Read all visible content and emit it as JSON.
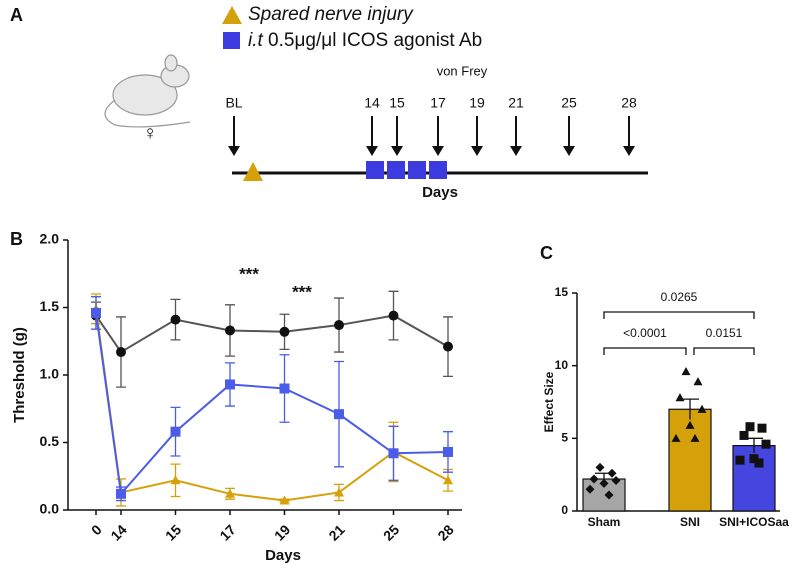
{
  "panel_a": {
    "label": "A",
    "legend": [
      {
        "text": "Spared nerve injury"
      },
      {
        "prefix": "i.t",
        "text": " 0.5μg/μl ICOS agonist Ab"
      }
    ],
    "symbol": "♀",
    "measure": "von Frey",
    "timepoints": [
      "BL",
      "14",
      "15",
      "17",
      "19",
      "21",
      "25",
      "28"
    ],
    "axis_label": "Days"
  },
  "chart_data": [
    {
      "type": "line",
      "panel": "B",
      "x_label": "Days",
      "y_label": "Threshold (g)",
      "categories": [
        "0",
        "14",
        "15",
        "17",
        "19",
        "21",
        "25",
        "28"
      ],
      "ylim": [
        0,
        2
      ],
      "yticks": [
        {
          "value": 0,
          "label": "0.0"
        },
        {
          "value": 0.5,
          "label": "0.5"
        },
        {
          "value": 1,
          "label": "1.0"
        },
        {
          "value": 1.5,
          "label": "1.5"
        },
        {
          "value": 2,
          "label": "2.0"
        }
      ],
      "series": [
        {
          "color": "#555555",
          "marker_color": "#111111",
          "marker": "circle",
          "values": [
            1.44,
            1.17,
            1.41,
            1.33,
            1.32,
            1.37,
            1.44,
            1.21
          ],
          "errors": [
            0.1,
            0.26,
            0.15,
            0.19,
            0.13,
            0.2,
            0.18,
            0.22
          ]
        },
        {
          "color": "#d4a10b",
          "marker_color": "#d4a10b",
          "marker": "triangle",
          "values": [
            1.49,
            0.13,
            0.22,
            0.12,
            0.07,
            0.13,
            0.43,
            0.22
          ],
          "errors": [
            0.11,
            0.1,
            0.12,
            0.04,
            0.01,
            0.06,
            0.22,
            0.08
          ]
        },
        {
          "color": "#4b5ce8",
          "marker_color": "#4b5ce8",
          "marker": "square",
          "values": [
            1.46,
            0.12,
            0.58,
            0.93,
            0.9,
            0.71,
            0.42,
            0.43
          ],
          "errors": [
            0.12,
            0.05,
            0.18,
            0.16,
            0.25,
            0.39,
            0.2,
            0.15
          ]
        }
      ],
      "annotations": [
        "***",
        "***"
      ]
    },
    {
      "type": "bar",
      "panel": "C",
      "y_label": "Effect Size",
      "categories": [
        "Sham",
        "SNI",
        "SNI+ICOSaa"
      ],
      "values": [
        2.2,
        7.0,
        4.5
      ],
      "errors": [
        0.4,
        0.7,
        0.5
      ],
      "colors": [
        "#a6a6a6",
        "#d4a10b",
        "#4545e0"
      ],
      "markers": [
        "diamond",
        "triangle",
        "square"
      ],
      "points": [
        [
          3.0,
          2.6,
          2.2,
          2.1,
          1.9,
          1.5,
          1.1
        ],
        [
          9.6,
          8.9,
          7.8,
          7.0,
          5.9,
          5.0,
          5.0
        ],
        [
          5.8,
          5.7,
          5.2,
          4.6,
          3.6,
          3.5,
          3.3
        ]
      ],
      "ylim": [
        0,
        15
      ],
      "yticks": [
        0,
        5,
        10,
        15
      ],
      "annotations": [
        "0.0265",
        "<0.0001",
        "0.0151"
      ]
    }
  ]
}
